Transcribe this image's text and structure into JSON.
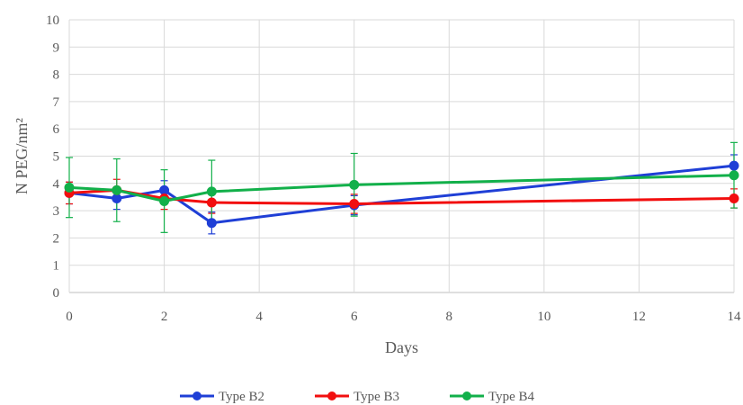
{
  "chart_data": {
    "type": "line",
    "xlabel": "Days",
    "ylabel": "N PEG/nm²",
    "xlim": [
      0,
      14
    ],
    "ylim": [
      0,
      10
    ],
    "x_ticks": [
      0,
      2,
      4,
      6,
      8,
      10,
      12,
      14
    ],
    "y_ticks": [
      0,
      1,
      2,
      3,
      4,
      5,
      6,
      7,
      8,
      9,
      10
    ],
    "grid": true,
    "legend_position": "bottom",
    "series": [
      {
        "name": "Type B2",
        "color": "#1f3fd6",
        "marker": "circle",
        "x": [
          0,
          1,
          2,
          3,
          6,
          14
        ],
        "y": [
          3.65,
          3.45,
          3.75,
          2.55,
          3.2,
          4.65
        ],
        "err": [
          0.4,
          0.4,
          0.35,
          0.4,
          0.35,
          0.4
        ]
      },
      {
        "name": "Type B3",
        "color": "#f20f0f",
        "marker": "circle",
        "x": [
          0,
          1,
          2,
          3,
          6,
          14
        ],
        "y": [
          3.65,
          3.75,
          3.45,
          3.3,
          3.25,
          3.45
        ],
        "err": [
          0.4,
          0.4,
          0.4,
          0.4,
          0.35,
          0.35
        ]
      },
      {
        "name": "Type B4",
        "color": "#12b04a",
        "marker": "circle",
        "x": [
          0,
          1,
          2,
          3,
          6,
          14
        ],
        "y": [
          3.85,
          3.75,
          3.35,
          3.7,
          3.95,
          4.3
        ],
        "err": [
          1.1,
          1.15,
          1.15,
          1.15,
          1.15,
          1.2
        ]
      }
    ]
  }
}
